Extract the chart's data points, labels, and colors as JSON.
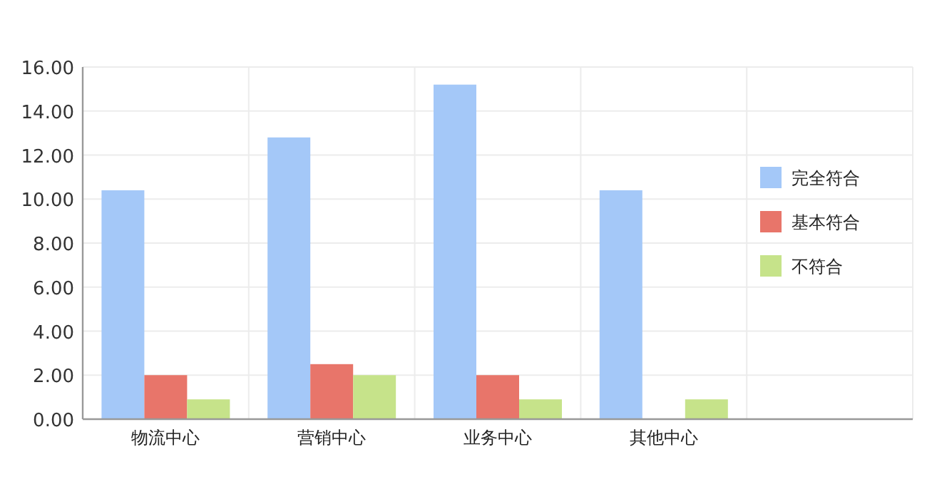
{
  "chart_data": {
    "type": "bar",
    "categories": [
      "物流中心",
      "营销中心",
      "业务中心",
      "其他中心",
      null
    ],
    "series": [
      {
        "name": "完全符合",
        "color": "#a4c8f8",
        "values": [
          10.4,
          12.8,
          15.2,
          10.4,
          null
        ]
      },
      {
        "name": "基本符合",
        "color": "#e8756a",
        "values": [
          2.0,
          2.5,
          2.0,
          0,
          null
        ]
      },
      {
        "name": "不符合",
        "color": "#c6e38a",
        "values": [
          0.9,
          2.0,
          0.9,
          0.9,
          null
        ]
      }
    ],
    "ylim": [
      0,
      16
    ],
    "yticks": [
      {
        "value": 0,
        "label": "0.00"
      },
      {
        "value": 2,
        "label": "2.00"
      },
      {
        "value": 4,
        "label": "4.00"
      },
      {
        "value": 6,
        "label": "6.00"
      },
      {
        "value": 8,
        "label": "8.00"
      },
      {
        "value": 10,
        "label": "10.00"
      },
      {
        "value": 12,
        "label": "12.00"
      },
      {
        "value": 14,
        "label": "14.00"
      },
      {
        "value": 16,
        "label": "16.00"
      }
    ],
    "grid": true,
    "legend": "right"
  }
}
